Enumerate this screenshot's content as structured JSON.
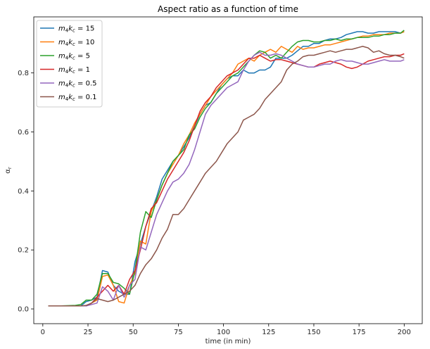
{
  "chart_data": {
    "type": "line",
    "title": "Aspect ratio as a function of time",
    "xlabel": "time (in min)",
    "ylabel": "αr",
    "xlim": [
      -5,
      210
    ],
    "ylim": [
      -0.05,
      0.99
    ],
    "xticks": [
      0,
      25,
      50,
      75,
      100,
      125,
      150,
      175,
      200
    ],
    "yticks": [
      0.0,
      0.2,
      0.4,
      0.6,
      0.8
    ],
    "ytick_labels": [
      "0.0",
      "0.2",
      "0.4",
      "0.6",
      "0.8"
    ],
    "legend_position": "top-left",
    "grid": false,
    "series": [
      {
        "name": "m₄k꜀ = 15",
        "label_main": "m",
        "label_sub1": "4",
        "label_mid": "k",
        "label_sub2": "c",
        "label_value": " = 15",
        "color": "#1f77b4",
        "x": [
          3,
          10,
          18,
          21,
          24,
          27,
          30,
          33,
          36,
          39,
          42,
          45,
          48,
          51,
          54,
          57,
          60,
          63,
          66,
          69,
          72,
          75,
          78,
          81,
          84,
          87,
          90,
          93,
          96,
          99,
          102,
          105,
          108,
          111,
          114,
          117,
          120,
          123,
          126,
          129,
          132,
          135,
          138,
          141,
          144,
          147,
          150,
          153,
          156,
          159,
          162,
          165,
          168,
          171,
          174,
          177,
          180,
          183,
          186,
          189,
          192,
          195,
          198,
          200
        ],
        "y": [
          0.01,
          0.01,
          0.01,
          0.01,
          0.025,
          0.03,
          0.04,
          0.13,
          0.125,
          0.08,
          0.06,
          0.05,
          0.05,
          0.16,
          0.22,
          0.28,
          0.33,
          0.38,
          0.44,
          0.47,
          0.5,
          0.52,
          0.55,
          0.58,
          0.62,
          0.66,
          0.69,
          0.7,
          0.73,
          0.76,
          0.78,
          0.79,
          0.79,
          0.81,
          0.8,
          0.8,
          0.81,
          0.81,
          0.82,
          0.85,
          0.85,
          0.85,
          0.86,
          0.875,
          0.89,
          0.89,
          0.9,
          0.9,
          0.91,
          0.915,
          0.915,
          0.92,
          0.93,
          0.935,
          0.94,
          0.94,
          0.935,
          0.935,
          0.94,
          0.94,
          0.94,
          0.94,
          0.935,
          0.94
        ]
      },
      {
        "name": "m₄k꜀ = 10",
        "label_main": "m",
        "label_sub1": "4",
        "label_mid": "k",
        "label_sub2": "c",
        "label_value": " = 10",
        "color": "#ff7f0e",
        "x": [
          3,
          10,
          18,
          21,
          24,
          27,
          30,
          33,
          36,
          39,
          42,
          45,
          48,
          51,
          54,
          57,
          60,
          63,
          66,
          69,
          72,
          75,
          78,
          81,
          84,
          87,
          90,
          93,
          96,
          99,
          102,
          105,
          108,
          111,
          114,
          117,
          120,
          123,
          126,
          129,
          132,
          135,
          138,
          141,
          144,
          147,
          150,
          153,
          156,
          159,
          162,
          165,
          168,
          171,
          174,
          177,
          180,
          183,
          186,
          189,
          192,
          195,
          198,
          200
        ],
        "y": [
          0.01,
          0.01,
          0.01,
          0.01,
          0.01,
          0.02,
          0.03,
          0.11,
          0.115,
          0.08,
          0.025,
          0.02,
          0.08,
          0.12,
          0.23,
          0.22,
          0.33,
          0.37,
          0.42,
          0.46,
          0.49,
          0.52,
          0.56,
          0.59,
          0.63,
          0.66,
          0.69,
          0.72,
          0.74,
          0.76,
          0.78,
          0.8,
          0.83,
          0.84,
          0.85,
          0.84,
          0.86,
          0.87,
          0.88,
          0.87,
          0.89,
          0.88,
          0.87,
          0.89,
          0.88,
          0.885,
          0.885,
          0.89,
          0.895,
          0.895,
          0.9,
          0.905,
          0.91,
          0.915,
          0.92,
          0.925,
          0.925,
          0.93,
          0.93,
          0.93,
          0.935,
          0.935,
          0.935,
          0.94
        ]
      },
      {
        "name": "m₄k꜀ = 5",
        "label_main": "m",
        "label_sub1": "4",
        "label_mid": "k",
        "label_sub2": "c",
        "label_value": " = 5",
        "color": "#2ca02c",
        "x": [
          3,
          10,
          18,
          21,
          24,
          27,
          30,
          33,
          36,
          39,
          42,
          45,
          48,
          51,
          54,
          57,
          60,
          63,
          66,
          69,
          72,
          75,
          78,
          81,
          84,
          87,
          90,
          93,
          96,
          99,
          102,
          105,
          108,
          111,
          114,
          117,
          120,
          123,
          126,
          129,
          132,
          135,
          138,
          141,
          144,
          147,
          150,
          153,
          156,
          159,
          162,
          165,
          168,
          171,
          174,
          177,
          180,
          183,
          186,
          189,
          192,
          195,
          198,
          200
        ],
        "y": [
          0.01,
          0.01,
          0.012,
          0.015,
          0.03,
          0.03,
          0.05,
          0.12,
          0.12,
          0.09,
          0.085,
          0.07,
          0.05,
          0.13,
          0.26,
          0.33,
          0.31,
          0.37,
          0.42,
          0.46,
          0.5,
          0.52,
          0.54,
          0.59,
          0.61,
          0.65,
          0.68,
          0.7,
          0.73,
          0.75,
          0.77,
          0.79,
          0.8,
          0.82,
          0.84,
          0.86,
          0.875,
          0.87,
          0.85,
          0.86,
          0.85,
          0.87,
          0.89,
          0.905,
          0.91,
          0.91,
          0.905,
          0.905,
          0.91,
          0.91,
          0.915,
          0.91,
          0.915,
          0.915,
          0.92,
          0.92,
          0.92,
          0.925,
          0.925,
          0.93,
          0.93,
          0.935,
          0.935,
          0.945
        ]
      },
      {
        "name": "m₄k꜀ = 1",
        "label_main": "m",
        "label_sub1": "4",
        "label_mid": "k",
        "label_sub2": "c",
        "label_value": " = 1",
        "color": "#d62728",
        "x": [
          3,
          10,
          18,
          21,
          24,
          27,
          30,
          33,
          36,
          39,
          42,
          45,
          48,
          51,
          54,
          57,
          60,
          63,
          66,
          69,
          72,
          75,
          78,
          81,
          84,
          87,
          90,
          93,
          96,
          99,
          102,
          105,
          108,
          111,
          114,
          117,
          120,
          123,
          126,
          129,
          132,
          135,
          138,
          141,
          144,
          147,
          150,
          153,
          156,
          159,
          162,
          165,
          168,
          171,
          174,
          177,
          180,
          183,
          186,
          189,
          192,
          195,
          198,
          200
        ],
        "y": [
          0.01,
          0.01,
          0.01,
          0.01,
          0.01,
          0.02,
          0.04,
          0.06,
          0.08,
          0.06,
          0.08,
          0.05,
          0.1,
          0.13,
          0.2,
          0.28,
          0.34,
          0.36,
          0.4,
          0.44,
          0.47,
          0.5,
          0.53,
          0.57,
          0.62,
          0.67,
          0.7,
          0.72,
          0.75,
          0.77,
          0.79,
          0.8,
          0.81,
          0.83,
          0.85,
          0.85,
          0.86,
          0.85,
          0.84,
          0.845,
          0.845,
          0.84,
          0.835,
          0.83,
          0.825,
          0.82,
          0.82,
          0.83,
          0.835,
          0.84,
          0.835,
          0.83,
          0.82,
          0.815,
          0.82,
          0.83,
          0.84,
          0.845,
          0.85,
          0.855,
          0.855,
          0.86,
          0.86,
          0.865
        ]
      },
      {
        "name": "m₄k꜀ = 0.5",
        "label_main": "m",
        "label_sub1": "4",
        "label_mid": "k",
        "label_sub2": "c",
        "label_value": " = 0.5",
        "color": "#9467bd",
        "x": [
          3,
          10,
          18,
          21,
          24,
          27,
          30,
          33,
          36,
          39,
          42,
          45,
          48,
          51,
          54,
          57,
          60,
          63,
          66,
          69,
          72,
          75,
          78,
          81,
          84,
          87,
          90,
          93,
          96,
          99,
          102,
          105,
          108,
          111,
          114,
          117,
          120,
          123,
          126,
          129,
          132,
          135,
          138,
          141,
          144,
          147,
          150,
          153,
          156,
          159,
          162,
          165,
          168,
          171,
          174,
          177,
          180,
          183,
          186,
          189,
          192,
          195,
          198,
          200
        ],
        "y": [
          0.01,
          0.01,
          0.01,
          0.01,
          0.01,
          0.015,
          0.02,
          0.075,
          0.06,
          0.03,
          0.08,
          0.04,
          0.08,
          0.1,
          0.21,
          0.2,
          0.26,
          0.32,
          0.36,
          0.4,
          0.43,
          0.44,
          0.46,
          0.49,
          0.54,
          0.6,
          0.66,
          0.69,
          0.71,
          0.73,
          0.75,
          0.76,
          0.77,
          0.81,
          0.84,
          0.86,
          0.87,
          0.86,
          0.86,
          0.865,
          0.86,
          0.85,
          0.84,
          0.83,
          0.825,
          0.82,
          0.82,
          0.825,
          0.83,
          0.83,
          0.84,
          0.845,
          0.84,
          0.84,
          0.835,
          0.83,
          0.83,
          0.835,
          0.84,
          0.845,
          0.84,
          0.84,
          0.84,
          0.845
        ]
      },
      {
        "name": "m₄k꜀ = 0.1",
        "label_main": "m",
        "label_sub1": "4",
        "label_mid": "k",
        "label_sub2": "c",
        "label_value": " = 0.1",
        "color": "#8c564b",
        "x": [
          3,
          10,
          18,
          21,
          24,
          27,
          30,
          33,
          36,
          39,
          42,
          45,
          48,
          51,
          54,
          57,
          60,
          63,
          66,
          69,
          72,
          75,
          78,
          81,
          84,
          87,
          90,
          93,
          96,
          99,
          102,
          105,
          108,
          111,
          114,
          117,
          120,
          123,
          126,
          129,
          132,
          135,
          138,
          141,
          144,
          147,
          150,
          153,
          156,
          159,
          162,
          165,
          168,
          171,
          174,
          177,
          180,
          183,
          186,
          189,
          192,
          195,
          198,
          200
        ],
        "y": [
          0.01,
          0.01,
          0.01,
          0.01,
          0.012,
          0.02,
          0.035,
          0.03,
          0.025,
          0.03,
          0.04,
          0.05,
          0.06,
          0.08,
          0.12,
          0.15,
          0.17,
          0.2,
          0.24,
          0.27,
          0.32,
          0.32,
          0.34,
          0.37,
          0.4,
          0.43,
          0.46,
          0.48,
          0.5,
          0.53,
          0.56,
          0.58,
          0.6,
          0.64,
          0.65,
          0.66,
          0.68,
          0.71,
          0.73,
          0.75,
          0.77,
          0.81,
          0.83,
          0.84,
          0.855,
          0.86,
          0.86,
          0.865,
          0.87,
          0.875,
          0.87,
          0.875,
          0.88,
          0.88,
          0.885,
          0.89,
          0.885,
          0.87,
          0.875,
          0.865,
          0.86,
          0.86,
          0.855,
          0.85
        ]
      }
    ]
  }
}
